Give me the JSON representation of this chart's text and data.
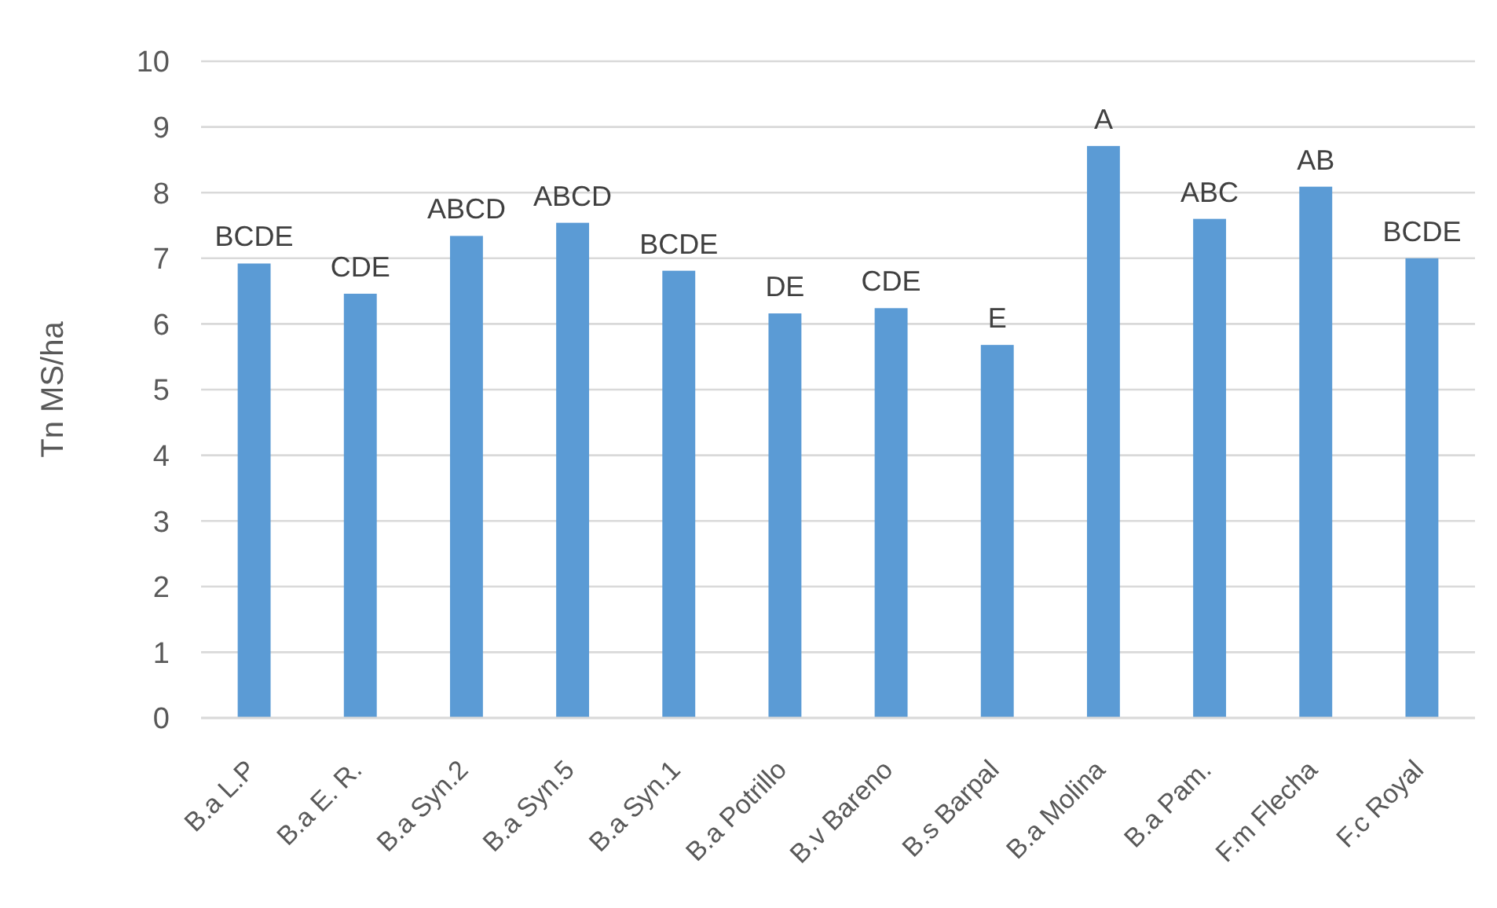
{
  "chart_data": {
    "type": "bar",
    "ylabel": "Tn MS/ha",
    "categories": [
      "B.a L.P",
      "B.a E. R.",
      "B.a Syn.2",
      "B.a Syn.5",
      "B.a Syn.1",
      "B.a Potrillo",
      "B.v Bareno",
      "B.s Barpal",
      "B.a Molina",
      "B.a Pam.",
      "F.m Flecha",
      "F.c Royal"
    ],
    "values": [
      6.92,
      6.46,
      7.34,
      7.54,
      6.81,
      6.16,
      6.24,
      5.68,
      8.71,
      7.6,
      8.09,
      7.0
    ],
    "value_labels": [
      "BCDE",
      "CDE",
      "ABCD",
      "ABCD",
      "BCDE",
      "DE",
      "CDE",
      "E",
      "A",
      "ABC",
      "AB",
      "BCDE"
    ],
    "color": "#5b9bd5",
    "ylim": [
      0,
      10
    ],
    "yticks": [
      0,
      1,
      2,
      3,
      4,
      5,
      6,
      7,
      8,
      9,
      10
    ],
    "grid": "y"
  }
}
